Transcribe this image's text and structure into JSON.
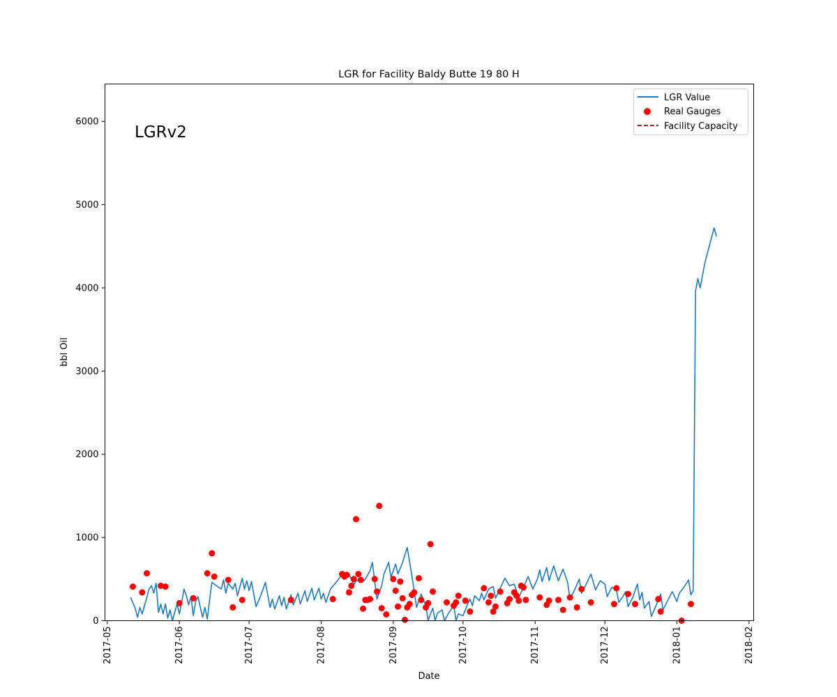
{
  "chart_data": {
    "type": "line",
    "title": "LGR for Facility Baldy Butte 19 80 H",
    "annotation": "LGRv2",
    "xlabel": "Date",
    "ylabel": "bbl Oil",
    "xlim": [
      "2017-04-30",
      "2018-02-03"
    ],
    "ylim": [
      0,
      6450
    ],
    "x_ticks": [
      "2017-05",
      "2017-06",
      "2017-07",
      "2017-08",
      "2017-09",
      "2017-10",
      "2017-11",
      "2017-12",
      "2018-01",
      "2018-02"
    ],
    "y_ticks": [
      0,
      1000,
      2000,
      3000,
      4000,
      5000,
      6000
    ],
    "grid": false,
    "legend_position": "upper right",
    "colors": {
      "lgr": "#1f77b4",
      "gauges": "#ff0000",
      "capacity": "#b22222"
    },
    "series": [
      {
        "name": "LGR Value",
        "style": "line",
        "points": [
          [
            "2017-05-11",
            280
          ],
          [
            "2017-05-13",
            150
          ],
          [
            "2017-05-14",
            40
          ],
          [
            "2017-05-15",
            160
          ],
          [
            "2017-05-16",
            80
          ],
          [
            "2017-05-18",
            280
          ],
          [
            "2017-05-19",
            380
          ],
          [
            "2017-05-20",
            420
          ],
          [
            "2017-05-21",
            330
          ],
          [
            "2017-05-22",
            450
          ],
          [
            "2017-05-23",
            100
          ],
          [
            "2017-05-24",
            200
          ],
          [
            "2017-05-25",
            80
          ],
          [
            "2017-05-26",
            200
          ],
          [
            "2017-05-27",
            30
          ],
          [
            "2017-05-28",
            130
          ],
          [
            "2017-05-29",
            0
          ],
          [
            "2017-05-30",
            100
          ],
          [
            "2017-05-31",
            200
          ],
          [
            "2017-06-01",
            80
          ],
          [
            "2017-06-02",
            220
          ],
          [
            "2017-06-03",
            380
          ],
          [
            "2017-06-04",
            300
          ],
          [
            "2017-06-05",
            190
          ],
          [
            "2017-06-06",
            290
          ],
          [
            "2017-06-07",
            60
          ],
          [
            "2017-06-08",
            230
          ],
          [
            "2017-06-09",
            290
          ],
          [
            "2017-06-10",
            160
          ],
          [
            "2017-06-11",
            40
          ],
          [
            "2017-06-12",
            160
          ],
          [
            "2017-06-13",
            20
          ],
          [
            "2017-06-14",
            250
          ],
          [
            "2017-06-15",
            460
          ],
          [
            "2017-06-17",
            420
          ],
          [
            "2017-06-19",
            380
          ],
          [
            "2017-06-20",
            490
          ],
          [
            "2017-06-21",
            330
          ],
          [
            "2017-06-22",
            450
          ],
          [
            "2017-06-24",
            380
          ],
          [
            "2017-06-25",
            450
          ],
          [
            "2017-06-26",
            300
          ],
          [
            "2017-06-28",
            510
          ],
          [
            "2017-06-29",
            380
          ],
          [
            "2017-06-30",
            480
          ],
          [
            "2017-07-01",
            360
          ],
          [
            "2017-07-02",
            470
          ],
          [
            "2017-07-04",
            170
          ],
          [
            "2017-07-06",
            300
          ],
          [
            "2017-07-08",
            460
          ],
          [
            "2017-07-10",
            160
          ],
          [
            "2017-07-11",
            260
          ],
          [
            "2017-07-12",
            140
          ],
          [
            "2017-07-14",
            300
          ],
          [
            "2017-07-15",
            180
          ],
          [
            "2017-07-16",
            280
          ],
          [
            "2017-07-17",
            140
          ],
          [
            "2017-07-19",
            310
          ],
          [
            "2017-07-20",
            190
          ],
          [
            "2017-07-22",
            330
          ],
          [
            "2017-07-23",
            200
          ],
          [
            "2017-07-25",
            360
          ],
          [
            "2017-07-26",
            230
          ],
          [
            "2017-07-28",
            390
          ],
          [
            "2017-07-29",
            250
          ],
          [
            "2017-07-31",
            390
          ],
          [
            "2017-08-01",
            260
          ],
          [
            "2017-08-02",
            330
          ],
          [
            "2017-08-03",
            220
          ],
          [
            "2017-08-05",
            380
          ],
          [
            "2017-08-08",
            480
          ],
          [
            "2017-08-10",
            560
          ],
          [
            "2017-08-13",
            560
          ],
          [
            "2017-08-15",
            430
          ],
          [
            "2017-08-16",
            480
          ],
          [
            "2017-08-17",
            480
          ],
          [
            "2017-08-18",
            480
          ],
          [
            "2017-08-19",
            470
          ],
          [
            "2017-08-20",
            500
          ],
          [
            "2017-08-22",
            600
          ],
          [
            "2017-08-23",
            700
          ],
          [
            "2017-08-25",
            260
          ],
          [
            "2017-08-27",
            420
          ],
          [
            "2017-08-28",
            560
          ],
          [
            "2017-08-30",
            700
          ],
          [
            "2017-08-31",
            520
          ],
          [
            "2017-09-02",
            680
          ],
          [
            "2017-09-03",
            560
          ],
          [
            "2017-09-05",
            700
          ],
          [
            "2017-09-07",
            880
          ],
          [
            "2017-09-09",
            540
          ],
          [
            "2017-09-10",
            360
          ],
          [
            "2017-09-11",
            160
          ],
          [
            "2017-09-13",
            320
          ],
          [
            "2017-09-15",
            180
          ],
          [
            "2017-09-16",
            0
          ],
          [
            "2017-09-17",
            80
          ],
          [
            "2017-09-18",
            150
          ],
          [
            "2017-09-19",
            0
          ],
          [
            "2017-09-20",
            90
          ],
          [
            "2017-09-22",
            130
          ],
          [
            "2017-09-23",
            0
          ],
          [
            "2017-09-25",
            100
          ],
          [
            "2017-09-27",
            180
          ],
          [
            "2017-09-28",
            0
          ],
          [
            "2017-09-29",
            80
          ],
          [
            "2017-10-01",
            60
          ],
          [
            "2017-10-03",
            200
          ],
          [
            "2017-10-04",
            260
          ],
          [
            "2017-10-05",
            180
          ],
          [
            "2017-10-06",
            300
          ],
          [
            "2017-10-08",
            240
          ],
          [
            "2017-10-09",
            330
          ],
          [
            "2017-10-10",
            250
          ],
          [
            "2017-10-12",
            380
          ],
          [
            "2017-10-14",
            410
          ],
          [
            "2017-10-15",
            270
          ],
          [
            "2017-10-17",
            390
          ],
          [
            "2017-10-19",
            510
          ],
          [
            "2017-10-21",
            420
          ],
          [
            "2017-10-23",
            440
          ],
          [
            "2017-10-25",
            280
          ],
          [
            "2017-10-27",
            400
          ],
          [
            "2017-10-29",
            530
          ],
          [
            "2017-10-31",
            380
          ],
          [
            "2017-11-02",
            500
          ],
          [
            "2017-11-03",
            610
          ],
          [
            "2017-11-04",
            470
          ],
          [
            "2017-11-06",
            640
          ],
          [
            "2017-11-07",
            480
          ],
          [
            "2017-11-09",
            660
          ],
          [
            "2017-11-11",
            480
          ],
          [
            "2017-11-13",
            620
          ],
          [
            "2017-11-15",
            460
          ],
          [
            "2017-11-16",
            260
          ],
          [
            "2017-11-18",
            370
          ],
          [
            "2017-11-20",
            500
          ],
          [
            "2017-11-21",
            330
          ],
          [
            "2017-11-23",
            440
          ],
          [
            "2017-11-25",
            560
          ],
          [
            "2017-11-27",
            370
          ],
          [
            "2017-11-29",
            480
          ],
          [
            "2017-12-01",
            440
          ],
          [
            "2017-12-02",
            290
          ],
          [
            "2017-12-04",
            400
          ],
          [
            "2017-12-06",
            370
          ],
          [
            "2017-12-07",
            220
          ],
          [
            "2017-12-09",
            300
          ],
          [
            "2017-12-10",
            350
          ],
          [
            "2017-12-11",
            170
          ],
          [
            "2017-12-13",
            280
          ],
          [
            "2017-12-15",
            440
          ],
          [
            "2017-12-16",
            250
          ],
          [
            "2017-12-17",
            340
          ],
          [
            "2017-12-18",
            150
          ],
          [
            "2017-12-20",
            230
          ],
          [
            "2017-12-21",
            50
          ],
          [
            "2017-12-23",
            180
          ],
          [
            "2017-12-25",
            320
          ],
          [
            "2017-12-26",
            130
          ],
          [
            "2017-12-28",
            240
          ],
          [
            "2017-12-30",
            350
          ],
          [
            "2018-01-01",
            230
          ],
          [
            "2018-01-02",
            330
          ],
          [
            "2018-01-04",
            400
          ],
          [
            "2018-01-06",
            490
          ],
          [
            "2018-01-07",
            310
          ],
          [
            "2018-01-08",
            360
          ],
          [
            "2018-01-09",
            3960
          ],
          [
            "2018-01-10",
            4110
          ],
          [
            "2018-01-11",
            4000
          ],
          [
            "2018-01-13",
            4300
          ],
          [
            "2018-01-17",
            4720
          ],
          [
            "2018-01-18",
            4620
          ]
        ]
      },
      {
        "name": "Real Gauges",
        "style": "scatter",
        "points": [
          [
            "2017-05-12",
            410
          ],
          [
            "2017-05-16",
            340
          ],
          [
            "2017-05-18",
            570
          ],
          [
            "2017-05-24",
            420
          ],
          [
            "2017-05-26",
            410
          ],
          [
            "2017-06-01",
            210
          ],
          [
            "2017-06-07",
            270
          ],
          [
            "2017-06-13",
            570
          ],
          [
            "2017-06-15",
            810
          ],
          [
            "2017-06-16",
            530
          ],
          [
            "2017-06-22",
            490
          ],
          [
            "2017-06-24",
            160
          ],
          [
            "2017-06-28",
            250
          ],
          [
            "2017-07-19",
            250
          ],
          [
            "2017-08-06",
            260
          ],
          [
            "2017-08-10",
            560
          ],
          [
            "2017-08-11",
            530
          ],
          [
            "2017-08-12",
            550
          ],
          [
            "2017-08-13",
            340
          ],
          [
            "2017-08-14",
            420
          ],
          [
            "2017-08-15",
            500
          ],
          [
            "2017-08-16",
            1220
          ],
          [
            "2017-08-17",
            560
          ],
          [
            "2017-08-18",
            490
          ],
          [
            "2017-08-19",
            145
          ],
          [
            "2017-08-20",
            250
          ],
          [
            "2017-08-21",
            250
          ],
          [
            "2017-08-22",
            260
          ],
          [
            "2017-08-24",
            500
          ],
          [
            "2017-08-25",
            350
          ],
          [
            "2017-08-26",
            1380
          ],
          [
            "2017-08-27",
            150
          ],
          [
            "2017-08-29",
            75
          ],
          [
            "2017-09-01",
            500
          ],
          [
            "2017-09-02",
            360
          ],
          [
            "2017-09-03",
            170
          ],
          [
            "2017-09-04",
            470
          ],
          [
            "2017-09-05",
            270
          ],
          [
            "2017-09-06",
            10
          ],
          [
            "2017-09-07",
            160
          ],
          [
            "2017-09-08",
            200
          ],
          [
            "2017-09-09",
            310
          ],
          [
            "2017-09-10",
            340
          ],
          [
            "2017-09-12",
            510
          ],
          [
            "2017-09-13",
            250
          ],
          [
            "2017-09-15",
            160
          ],
          [
            "2017-09-16",
            210
          ],
          [
            "2017-09-17",
            920
          ],
          [
            "2017-09-18",
            350
          ],
          [
            "2017-09-24",
            220
          ],
          [
            "2017-09-27",
            180
          ],
          [
            "2017-09-28",
            220
          ],
          [
            "2017-09-29",
            300
          ],
          [
            "2017-10-02",
            240
          ],
          [
            "2017-10-04",
            110
          ],
          [
            "2017-10-10",
            390
          ],
          [
            "2017-10-12",
            220
          ],
          [
            "2017-10-13",
            300
          ],
          [
            "2017-10-14",
            110
          ],
          [
            "2017-10-15",
            170
          ],
          [
            "2017-10-17",
            350
          ],
          [
            "2017-10-20",
            210
          ],
          [
            "2017-10-21",
            260
          ],
          [
            "2017-10-23",
            340
          ],
          [
            "2017-10-24",
            300
          ],
          [
            "2017-10-25",
            240
          ],
          [
            "2017-10-26",
            420
          ],
          [
            "2017-10-27",
            400
          ],
          [
            "2017-10-28",
            250
          ],
          [
            "2017-11-03",
            280
          ],
          [
            "2017-11-06",
            190
          ],
          [
            "2017-11-07",
            240
          ],
          [
            "2017-11-11",
            250
          ],
          [
            "2017-11-13",
            130
          ],
          [
            "2017-11-16",
            280
          ],
          [
            "2017-11-19",
            160
          ],
          [
            "2017-11-21",
            380
          ],
          [
            "2017-11-25",
            220
          ],
          [
            "2017-12-05",
            200
          ],
          [
            "2017-12-06",
            390
          ],
          [
            "2017-12-11",
            320
          ],
          [
            "2017-12-14",
            200
          ],
          [
            "2017-12-24",
            260
          ],
          [
            "2017-12-25",
            110
          ],
          [
            "2018-01-03",
            0
          ],
          [
            "2018-01-07",
            200
          ]
        ]
      },
      {
        "name": "Facility Capacity",
        "style": "dashed",
        "points": []
      }
    ]
  }
}
